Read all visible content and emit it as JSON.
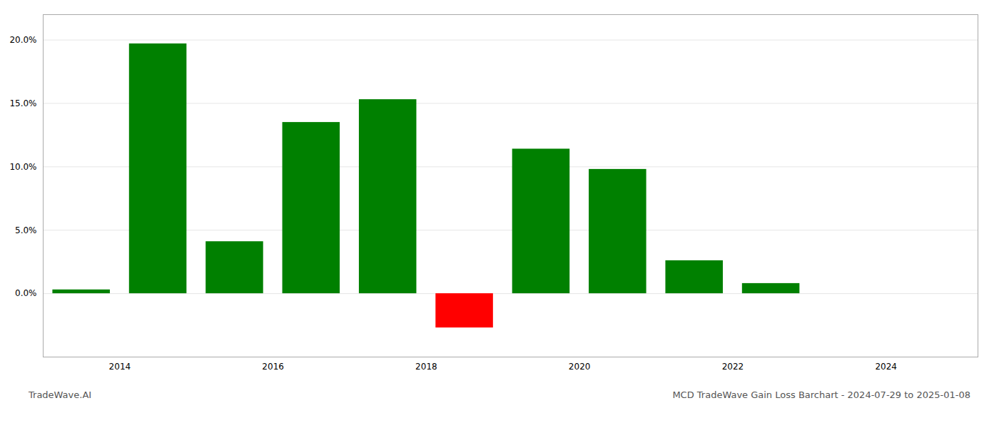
{
  "chart_data": {
    "type": "bar",
    "title": "MCD TradeWave Gain Loss Barchart - 2024-07-29 to 2025-01-08",
    "annotations": [
      "TradeWave.AI"
    ],
    "x": [
      2013.5,
      2014.5,
      2015.5,
      2016.5,
      2017.5,
      2018.5,
      2019.5,
      2020.5,
      2021.5,
      2022.5,
      2023.5
    ],
    "values": [
      0.3,
      19.7,
      4.1,
      13.5,
      15.3,
      -2.7,
      11.4,
      9.8,
      2.6,
      0.8,
      0.0
    ],
    "colors": [
      "#008000",
      "#008000",
      "#008000",
      "#008000",
      "#008000",
      "#ff0000",
      "#008000",
      "#008000",
      "#008000",
      "#008000",
      "#008000"
    ],
    "xlim": [
      2013.0,
      2025.2
    ],
    "xticks": [
      2014,
      2016,
      2018,
      2020,
      2022,
      2024
    ],
    "ylim": [
      -5,
      22
    ],
    "yticks": [
      {
        "value": 0.0,
        "label": "0.0%"
      },
      {
        "value": 5.0,
        "label": "5.0%"
      },
      {
        "value": 10.0,
        "label": "10.0%"
      },
      {
        "value": 15.0,
        "label": "15.0%"
      },
      {
        "value": 20.0,
        "label": "20.0%"
      }
    ],
    "grid": true
  }
}
